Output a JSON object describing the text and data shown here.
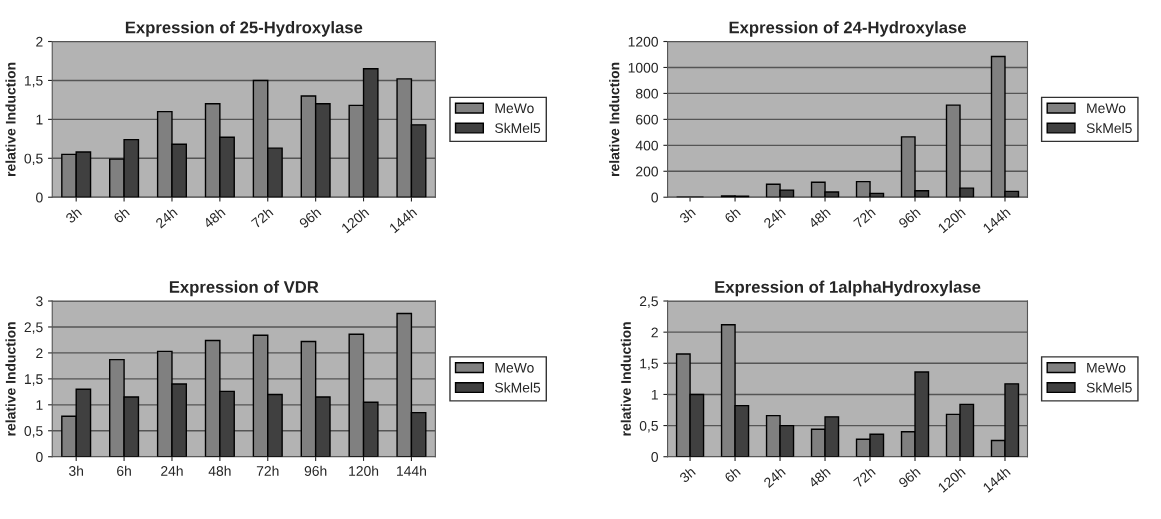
{
  "chart_data": [
    {
      "type": "bar",
      "title": "Expression of 25-Hydroxylase",
      "ylabel": "relative Induction",
      "categories": [
        "3h",
        "6h",
        "24h",
        "48h",
        "72h",
        "96h",
        "120h",
        "144h"
      ],
      "series": [
        {
          "name": "MeWo",
          "color": "#808080",
          "values": [
            0.55,
            0.49,
            1.1,
            1.2,
            1.5,
            1.3,
            1.18,
            1.52
          ]
        },
        {
          "name": "SkMel5",
          "color": "#404040",
          "values": [
            0.58,
            0.74,
            0.68,
            0.77,
            0.63,
            1.2,
            1.65,
            0.93
          ]
        }
      ],
      "ylim": [
        0,
        2
      ],
      "yticks": [
        0,
        {
          "value": 0.5,
          "label": "0,5"
        },
        1,
        {
          "value": 1.5,
          "label": "1,5"
        },
        2
      ],
      "grid": "y",
      "legend": "right"
    },
    {
      "type": "bar",
      "title": "Expression of 24-Hydroxylase",
      "ylabel": "relative Induction",
      "categories": [
        "3h",
        "6h",
        "24h",
        "48h",
        "72h",
        "96h",
        "120h",
        "144h"
      ],
      "series": [
        {
          "name": "MeWo",
          "color": "#808080",
          "values": [
            null,
            10,
            100,
            115,
            120,
            465,
            710,
            1085
          ]
        },
        {
          "name": "SkMel5",
          "color": "#404040",
          "values": [
            null,
            8,
            55,
            40,
            30,
            50,
            70,
            45
          ]
        }
      ],
      "ylim": [
        0,
        1200
      ],
      "yticks": [
        0,
        200,
        400,
        600,
        800,
        1000,
        1200
      ],
      "grid": "y",
      "legend": "right"
    },
    {
      "type": "bar",
      "title": "Expression of VDR",
      "ylabel": "relative Induction",
      "categories": [
        "3h",
        "6h",
        "24h",
        "48h",
        "72h",
        "96h",
        "120h",
        "144h"
      ],
      "series": [
        {
          "name": "MeWo",
          "color": "#808080",
          "values": [
            0.78,
            1.87,
            2.03,
            2.24,
            2.34,
            2.22,
            2.36,
            2.76
          ]
        },
        {
          "name": "SkMel5",
          "color": "#404040",
          "values": [
            1.3,
            1.15,
            1.4,
            1.26,
            1.2,
            1.15,
            1.05,
            0.85
          ]
        }
      ],
      "ylim": [
        0,
        3
      ],
      "yticks": [
        0,
        {
          "value": 0.5,
          "label": "0,5"
        },
        1,
        {
          "value": 1.5,
          "label": "1,5"
        },
        2,
        {
          "value": 2.5,
          "label": "2,5"
        },
        3
      ],
      "grid": "y",
      "legend": "right"
    },
    {
      "type": "bar",
      "title": "Expression of 1alphaHydroxylase",
      "ylabel": "relative Induction",
      "categories": [
        "3h",
        "6h",
        "24h",
        "48h",
        "72h",
        "96h",
        "120h",
        "144h"
      ],
      "series": [
        {
          "name": "MeWo",
          "color": "#808080",
          "values": [
            1.65,
            2.12,
            0.66,
            0.44,
            0.28,
            0.4,
            0.68,
            0.26
          ]
        },
        {
          "name": "SkMel5",
          "color": "#404040",
          "values": [
            1.0,
            0.82,
            0.5,
            0.64,
            0.36,
            1.36,
            0.84,
            1.17
          ]
        }
      ],
      "ylim": [
        0,
        2.5
      ],
      "yticks": [
        0,
        {
          "value": 0.5,
          "label": "0,5"
        },
        1,
        {
          "value": 1.5,
          "label": "1,5"
        },
        2,
        {
          "value": 2.5,
          "label": "2,5"
        }
      ],
      "grid": "y",
      "legend": "right"
    }
  ]
}
